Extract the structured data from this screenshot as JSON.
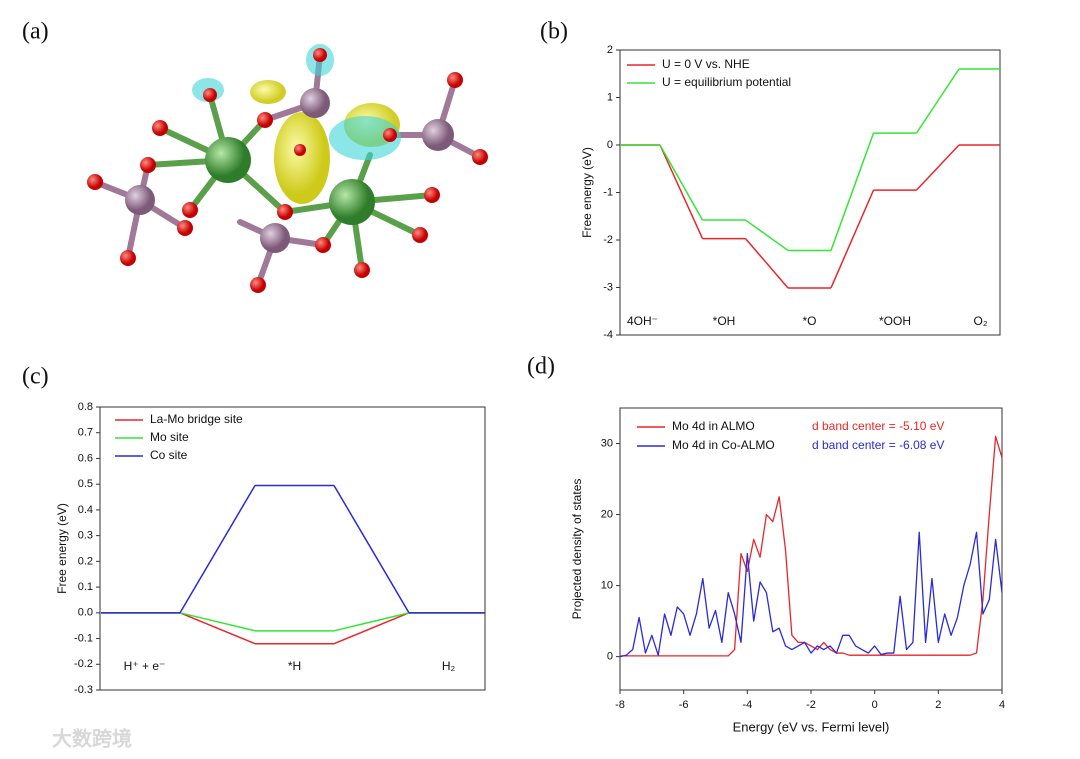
{
  "labels": [
    "(a)",
    "(b)",
    "(c)",
    "(d)"
  ],
  "watermark": "大数跨境",
  "chart_data": [
    {
      "type": "step",
      "ylabel": "Free energy (eV)",
      "categories": [
        "4OH⁻",
        "*OH",
        "*O",
        "*OOH",
        "O₂"
      ],
      "ylim": [
        -4,
        2
      ],
      "yticks": [
        2,
        1,
        0,
        -1,
        -2,
        -3,
        -4
      ],
      "series": [
        {
          "name": "U = 0 V vs. NHE",
          "color": "#e8262a",
          "values": [
            0,
            -1.97,
            -3.01,
            -0.95,
            0
          ]
        },
        {
          "name": "U = equilibrium potential",
          "color": "#33e633",
          "values": [
            0,
            -1.58,
            -2.22,
            0.25,
            1.6
          ]
        }
      ]
    },
    {
      "type": "step",
      "ylabel": "Free energy (eV)",
      "categories": [
        "H⁺ + e⁻",
        "*H",
        "H₂"
      ],
      "ylim": [
        -0.3,
        0.8
      ],
      "yticks": [
        0.8,
        0.7,
        0.6,
        0.5,
        0.4,
        0.3,
        0.2,
        0.1,
        {
          "value": 0,
          "label": "0.0"
        },
        -0.1,
        -0.2,
        -0.3
      ],
      "series": [
        {
          "name": "La-Mo bridge site",
          "color": "#e8262a",
          "values": [
            0,
            -0.12,
            0
          ]
        },
        {
          "name": "Mo site",
          "color": "#33e633",
          "values": [
            0,
            -0.07,
            0
          ]
        },
        {
          "name": "Co site",
          "color": "#2a2ad6",
          "values": [
            0,
            0.495,
            0
          ]
        }
      ]
    },
    {
      "type": "line",
      "xlabel": "Energy (eV vs. Fermi level)",
      "ylabel": "Projected density of states",
      "xlim": [
        -8,
        4
      ],
      "xticks": [
        -8,
        -6,
        -4,
        -2,
        0,
        2,
        4
      ],
      "ylim": [
        -4.7,
        35
      ],
      "yticks": [
        0,
        10,
        20,
        30
      ],
      "x": [
        -8,
        -7.8,
        -7.6,
        -7.4,
        -7.2,
        -7,
        -6.8,
        -6.6,
        -6.4,
        -6.2,
        -6,
        -5.8,
        -5.6,
        -5.4,
        -5.2,
        -5,
        -4.8,
        -4.6,
        -4.4,
        -4.2,
        -4,
        -3.8,
        -3.6,
        -3.4,
        -3.2,
        -3,
        -2.8,
        -2.6,
        -2.4,
        -2.2,
        -2,
        -1.8,
        -1.6,
        -1.4,
        -1.2,
        -1,
        -0.8,
        -0.6,
        -0.4,
        -0.2,
        0,
        0.2,
        0.4,
        0.6,
        0.8,
        1,
        1.2,
        1.4,
        1.6,
        1.8,
        2,
        2.2,
        2.4,
        2.6,
        2.8,
        3,
        3.2,
        3.4,
        3.6,
        3.8,
        4
      ],
      "series": [
        {
          "name": "Mo 4d in ALMO",
          "color": "#e8262a",
          "values": [
            0.1,
            0.1,
            0.1,
            0.1,
            0.1,
            0.1,
            0.1,
            0.1,
            0.1,
            0.1,
            0.1,
            0.1,
            0.1,
            0.1,
            0.1,
            0.1,
            0.1,
            0.1,
            1,
            14.5,
            12,
            16.5,
            14,
            20,
            19,
            22.5,
            15,
            3,
            2,
            2,
            1.5,
            1,
            2,
            1,
            0.5,
            0.5,
            0.2,
            0.2,
            0.2,
            0.2,
            0.2,
            0.2,
            0.2,
            0.2,
            0.2,
            0.2,
            0.2,
            0.2,
            0.2,
            0.2,
            0.2,
            0.2,
            0.2,
            0.2,
            0.2,
            0.2,
            0.5,
            8,
            20,
            31,
            28
          ]
        },
        {
          "name": "Mo 4d in Co-ALMO",
          "color": "#2a2ad6",
          "values": [
            0,
            0.2,
            1,
            5.5,
            0.5,
            3,
            0.2,
            6,
            3,
            7,
            6,
            3,
            6,
            11,
            4,
            6.5,
            2,
            9,
            6,
            2,
            14.5,
            5,
            10.5,
            9,
            3.5,
            4,
            1.5,
            1,
            1.5,
            2,
            0.5,
            1.5,
            1,
            1.5,
            0.5,
            3,
            3,
            1.5,
            1,
            0.5,
            1.5,
            0.3,
            0.5,
            0.5,
            8.5,
            1,
            2,
            17.5,
            2,
            11,
            2,
            6,
            3,
            5.5,
            10,
            13,
            17.5,
            6,
            8,
            16.5,
            9
          ]
        }
      ],
      "annotations": [
        {
          "text": "d band center = -5.10 eV",
          "color": "#e8262a"
        },
        {
          "text": "d band center = -6.08 eV",
          "color": "#2a2ad6"
        }
      ]
    }
  ]
}
